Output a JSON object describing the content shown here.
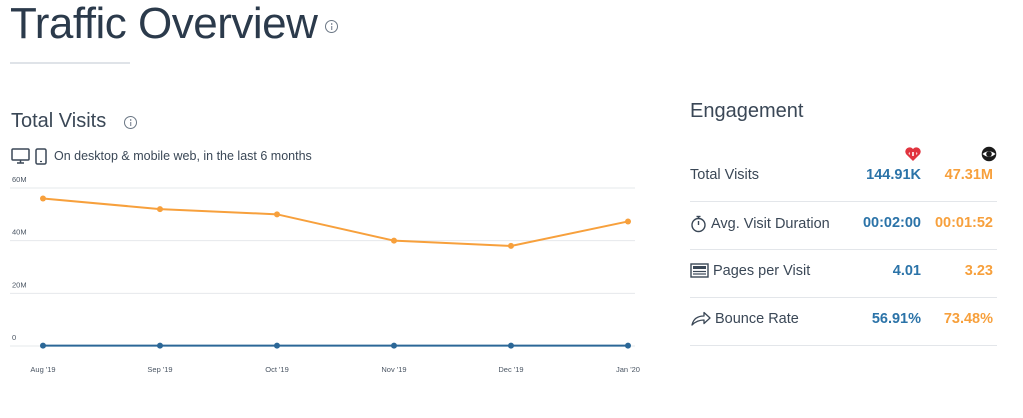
{
  "header": {
    "title": "Traffic Overview"
  },
  "total_visits": {
    "title": "Total Visits",
    "description": "On desktop & mobile web, in the last 6 months"
  },
  "chart_data": {
    "type": "line",
    "x": [
      "Aug '19",
      "Sep '19",
      "Oct '19",
      "Nov '19",
      "Dec '19",
      "Jan '20"
    ],
    "y_ticks": [
      "0",
      "20M",
      "40M",
      "60M"
    ],
    "ylim": [
      0,
      60000000
    ],
    "grid": true,
    "series": [
      {
        "values": [
          56000000,
          52000000,
          50000000,
          40000000,
          38000000,
          47300000
        ],
        "color": "#f7a03c"
      },
      {
        "values": [
          144910,
          144910,
          144910,
          144910,
          144910,
          144910
        ],
        "color": "#2b6797"
      }
    ]
  },
  "engagement": {
    "title": "Engagement",
    "columns": [
      {
        "icon": "iheart-logo-icon",
        "color": "#e1343f"
      },
      {
        "icon": "cbs-eye-logo-icon",
        "color": "#1a1a1a"
      }
    ],
    "rows": [
      {
        "label": "Total Visits",
        "icon": "",
        "v1": "144.91K",
        "v2": "47.31M"
      },
      {
        "label": "Avg. Visit Duration",
        "icon": "stopwatch-icon",
        "v1": "00:02:00",
        "v2": "00:01:52"
      },
      {
        "label": "Pages per Visit",
        "icon": "pages-icon",
        "v1": "4.01",
        "v2": "3.23"
      },
      {
        "label": "Bounce Rate",
        "icon": "bounce-arrow-icon",
        "v1": "56.91%",
        "v2": "73.48%"
      }
    ]
  }
}
